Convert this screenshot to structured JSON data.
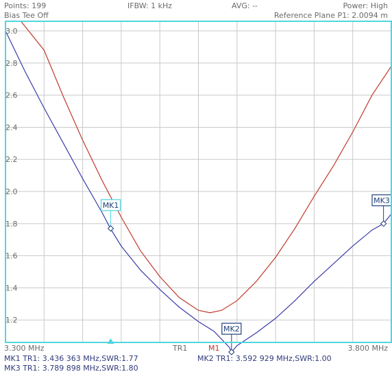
{
  "header": {
    "points": "Points: 199",
    "ifbw": "IFBW: 1 kHz",
    "avg": "AVG: --",
    "power": "Power: High",
    "bias_tee": "Bias Tee Off",
    "ref_plane": "Reference Plane P1: 2.0094 m"
  },
  "axis": {
    "x_start_label": "3.300 MHz",
    "x_end_label": "3.800 MHz",
    "trace_tag": "TR1",
    "marker_tag": "M1"
  },
  "footer": {
    "mk1": "MK1 TR1:  3.436 363 MHz,SWR:1.77",
    "mk2": "MK2 TR1:  3.592 929 MHz,SWR:1.00",
    "mk3": "MK3 TR1:  3.789 898 MHz,SWR:1.80"
  },
  "colors": {
    "background": "#ffffff",
    "frame": "#4fd6dc",
    "grid": "#c9c9c9",
    "trace1": "#3a3aa8",
    "trace2": "#c0392b",
    "active_marker": "#4fd6dc",
    "marker": "#1e3f7a"
  },
  "chart_data": {
    "type": "line",
    "title": "",
    "xlabel": "",
    "ylabel": "",
    "xlim": [
      3.3,
      3.8
    ],
    "ylim": [
      1.06,
      3.06
    ],
    "y_ticks": [
      1.2,
      1.4,
      1.6,
      1.8,
      2.0,
      2.2,
      2.4,
      2.6,
      2.8,
      3.0
    ],
    "grid": true,
    "series": [
      {
        "color": "#3a3aa8",
        "x": [
          3.3,
          3.325,
          3.35,
          3.375,
          3.4,
          3.425,
          3.436,
          3.45,
          3.475,
          3.5,
          3.525,
          3.55,
          3.57,
          3.59,
          3.593,
          3.6,
          3.625,
          3.65,
          3.675,
          3.7,
          3.725,
          3.75,
          3.775,
          3.79,
          3.8
        ],
        "y": [
          3.0,
          2.75,
          2.52,
          2.3,
          2.08,
          1.87,
          1.77,
          1.66,
          1.51,
          1.39,
          1.28,
          1.19,
          1.13,
          1.03,
          1.0,
          1.04,
          1.12,
          1.21,
          1.32,
          1.44,
          1.55,
          1.66,
          1.76,
          1.8,
          1.86
        ]
      },
      {
        "color": "#c0392b",
        "x": [
          3.3,
          3.32,
          3.35,
          3.375,
          3.4,
          3.425,
          3.45,
          3.475,
          3.5,
          3.525,
          3.55,
          3.565,
          3.58,
          3.6,
          3.625,
          3.65,
          3.675,
          3.7,
          3.725,
          3.75,
          3.775,
          3.8
        ],
        "y": [
          3.06,
          3.06,
          2.88,
          2.59,
          2.32,
          2.07,
          1.84,
          1.63,
          1.47,
          1.34,
          1.26,
          1.245,
          1.26,
          1.32,
          1.44,
          1.59,
          1.77,
          1.97,
          2.16,
          2.37,
          2.6,
          2.78
        ]
      }
    ],
    "markers": [
      {
        "label": "MK1",
        "x": 3.436363,
        "y": 1.77,
        "active": true
      },
      {
        "label": "MK2",
        "x": 3.592929,
        "y": 1.0,
        "active": false
      },
      {
        "label": "MK3",
        "x": 3.789898,
        "y": 1.8,
        "active": false
      }
    ]
  }
}
